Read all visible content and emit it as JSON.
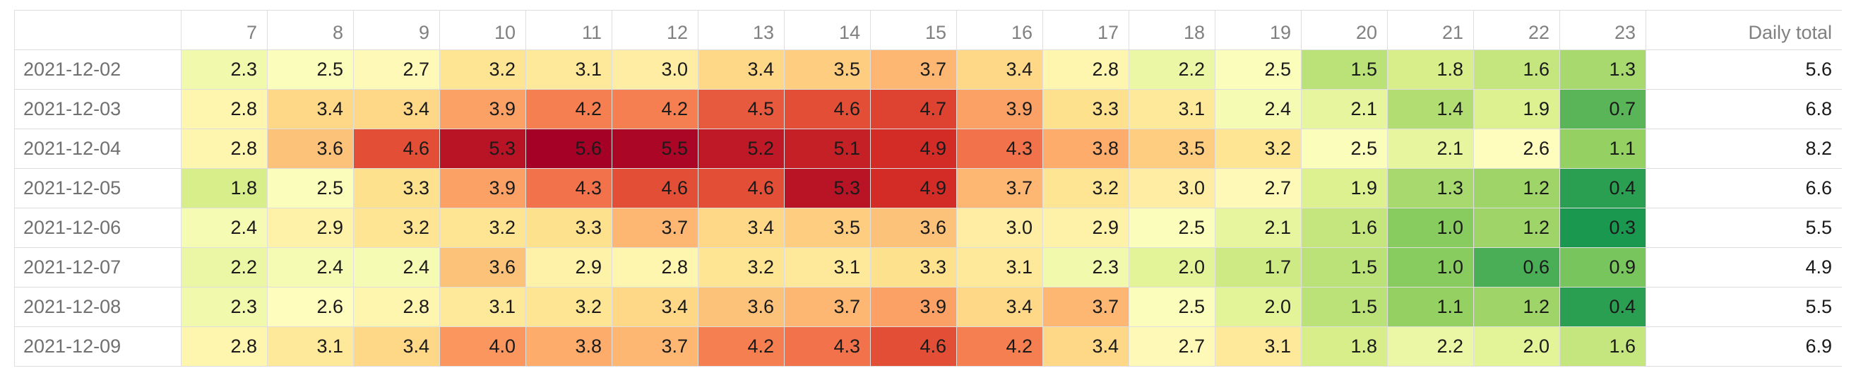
{
  "table": {
    "hour_headers": [
      "7",
      "8",
      "9",
      "10",
      "11",
      "12",
      "13",
      "14",
      "15",
      "16",
      "17",
      "18",
      "19",
      "20",
      "21",
      "22",
      "23"
    ],
    "total_header": "Daily total",
    "rows": [
      {
        "date": "2021-12-02",
        "values": [
          "2.3",
          "2.5",
          "2.7",
          "3.2",
          "3.1",
          "3.0",
          "3.4",
          "3.5",
          "3.7",
          "3.4",
          "2.8",
          "2.2",
          "2.5",
          "1.5",
          "1.8",
          "1.6",
          "1.3"
        ],
        "total": "5.6"
      },
      {
        "date": "2021-12-03",
        "values": [
          "2.8",
          "3.4",
          "3.4",
          "3.9",
          "4.2",
          "4.2",
          "4.5",
          "4.6",
          "4.7",
          "3.9",
          "3.3",
          "3.1",
          "2.4",
          "2.1",
          "1.4",
          "1.9",
          "0.7"
        ],
        "total": "6.8"
      },
      {
        "date": "2021-12-04",
        "values": [
          "2.8",
          "3.6",
          "4.6",
          "5.3",
          "5.6",
          "5.5",
          "5.2",
          "5.1",
          "4.9",
          "4.3",
          "3.8",
          "3.5",
          "3.2",
          "2.5",
          "2.1",
          "2.6",
          "1.1"
        ],
        "total": "8.2"
      },
      {
        "date": "2021-12-05",
        "values": [
          "1.8",
          "2.5",
          "3.3",
          "3.9",
          "4.3",
          "4.6",
          "4.6",
          "5.3",
          "4.9",
          "3.7",
          "3.2",
          "3.0",
          "2.7",
          "1.9",
          "1.3",
          "1.2",
          "0.4"
        ],
        "total": "6.6"
      },
      {
        "date": "2021-12-06",
        "values": [
          "2.4",
          "2.9",
          "3.2",
          "3.2",
          "3.3",
          "3.7",
          "3.4",
          "3.5",
          "3.6",
          "3.0",
          "2.9",
          "2.5",
          "2.1",
          "1.6",
          "1.0",
          "1.2",
          "0.3"
        ],
        "total": "5.5"
      },
      {
        "date": "2021-12-07",
        "values": [
          "2.2",
          "2.4",
          "2.4",
          "3.6",
          "2.9",
          "2.8",
          "3.2",
          "3.1",
          "3.3",
          "3.1",
          "2.3",
          "2.0",
          "1.7",
          "1.5",
          "1.0",
          "0.6",
          "0.9"
        ],
        "total": "4.9"
      },
      {
        "date": "2021-12-08",
        "values": [
          "2.3",
          "2.6",
          "2.8",
          "3.1",
          "3.2",
          "3.4",
          "3.6",
          "3.7",
          "3.9",
          "3.4",
          "3.7",
          "2.5",
          "2.0",
          "1.5",
          "1.1",
          "1.2",
          "0.4"
        ],
        "total": "5.5"
      },
      {
        "date": "2021-12-09",
        "values": [
          "2.8",
          "3.1",
          "3.4",
          "4.0",
          "3.8",
          "3.7",
          "4.2",
          "4.3",
          "4.6",
          "4.2",
          "3.4",
          "2.7",
          "3.1",
          "1.8",
          "2.2",
          "2.0",
          "1.6"
        ],
        "total": "6.9"
      }
    ]
  },
  "colors": {
    "grid_border": "#dedede",
    "header_text": "#808080",
    "date_text": "#707070",
    "value_text": "#1a1a1a",
    "scale": [
      "#1a9850",
      "#91cf60",
      "#d9ef8b",
      "#fefebf",
      "#fee08b",
      "#fc8d59",
      "#d73027",
      "#a50026"
    ],
    "scale_domain": [
      0.3,
      5.6
    ]
  }
}
